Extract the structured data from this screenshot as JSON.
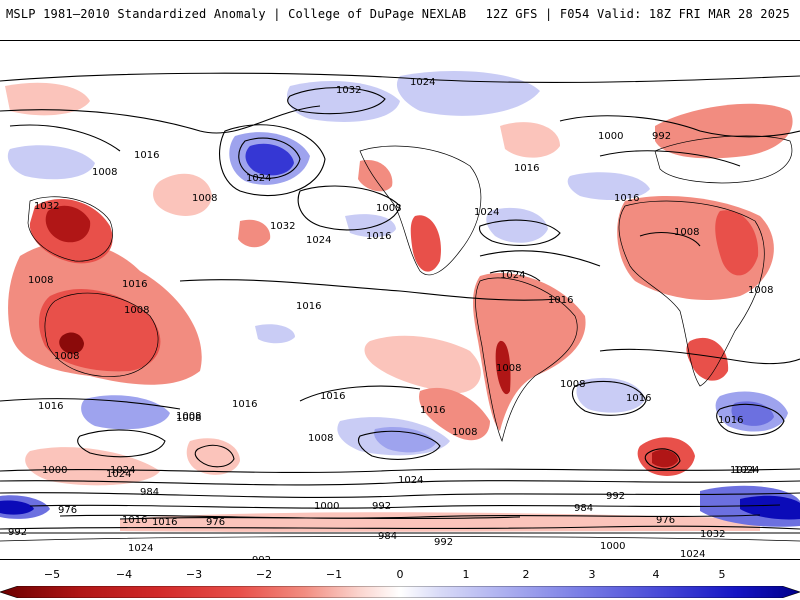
{
  "header": {
    "title_left": "MSLP 1981–2010 Standardized Anomaly | College of DuPage NEXLAB",
    "title_right": "12Z GFS | F054 Valid: 18Z FRI MAR 28 2025"
  },
  "colors": {
    "neg5": "#8b0a0a",
    "neg4": "#d22a2a",
    "neg3": "#e8504a",
    "neg2": "#f28c80",
    "neg1": "#fbc4bb",
    "zero": "#ffffff",
    "pos1": "#c9ccf5",
    "pos2": "#9ea3ee",
    "pos3": "#6c70e0",
    "pos4": "#3537d4",
    "pos5": "#0b0bb8",
    "contour": "#000000",
    "coast": "#000000"
  },
  "colorbar": {
    "ticks": [
      "−5",
      "−4",
      "−3",
      "−2",
      "−1",
      "0",
      "1",
      "2",
      "3",
      "4",
      "5"
    ]
  },
  "contour_labels": [
    "1032",
    "1024",
    "1016",
    "1008",
    "1000",
    "992",
    "1024",
    "1008",
    "1016",
    "1024",
    "1032",
    "1024",
    "1016",
    "1008",
    "1024",
    "1016",
    "1008",
    "1016",
    "1008",
    "1008",
    "1032",
    "1016",
    "1008",
    "1016",
    "1008",
    "1024",
    "1024",
    "1008",
    "1016",
    "1016",
    "1008",
    "1016",
    "1008",
    "1016",
    "1008",
    "1024",
    "1008",
    "1016",
    "1016",
    "1008",
    "1000",
    "984",
    "1024",
    "1000",
    "992",
    "1024",
    "976",
    "1016",
    "1024",
    "984",
    "976",
    "992",
    "1032",
    "1024",
    "1000",
    "992",
    "984",
    "992",
    "1008",
    "1000",
    "992",
    "1016",
    "976"
  ]
}
